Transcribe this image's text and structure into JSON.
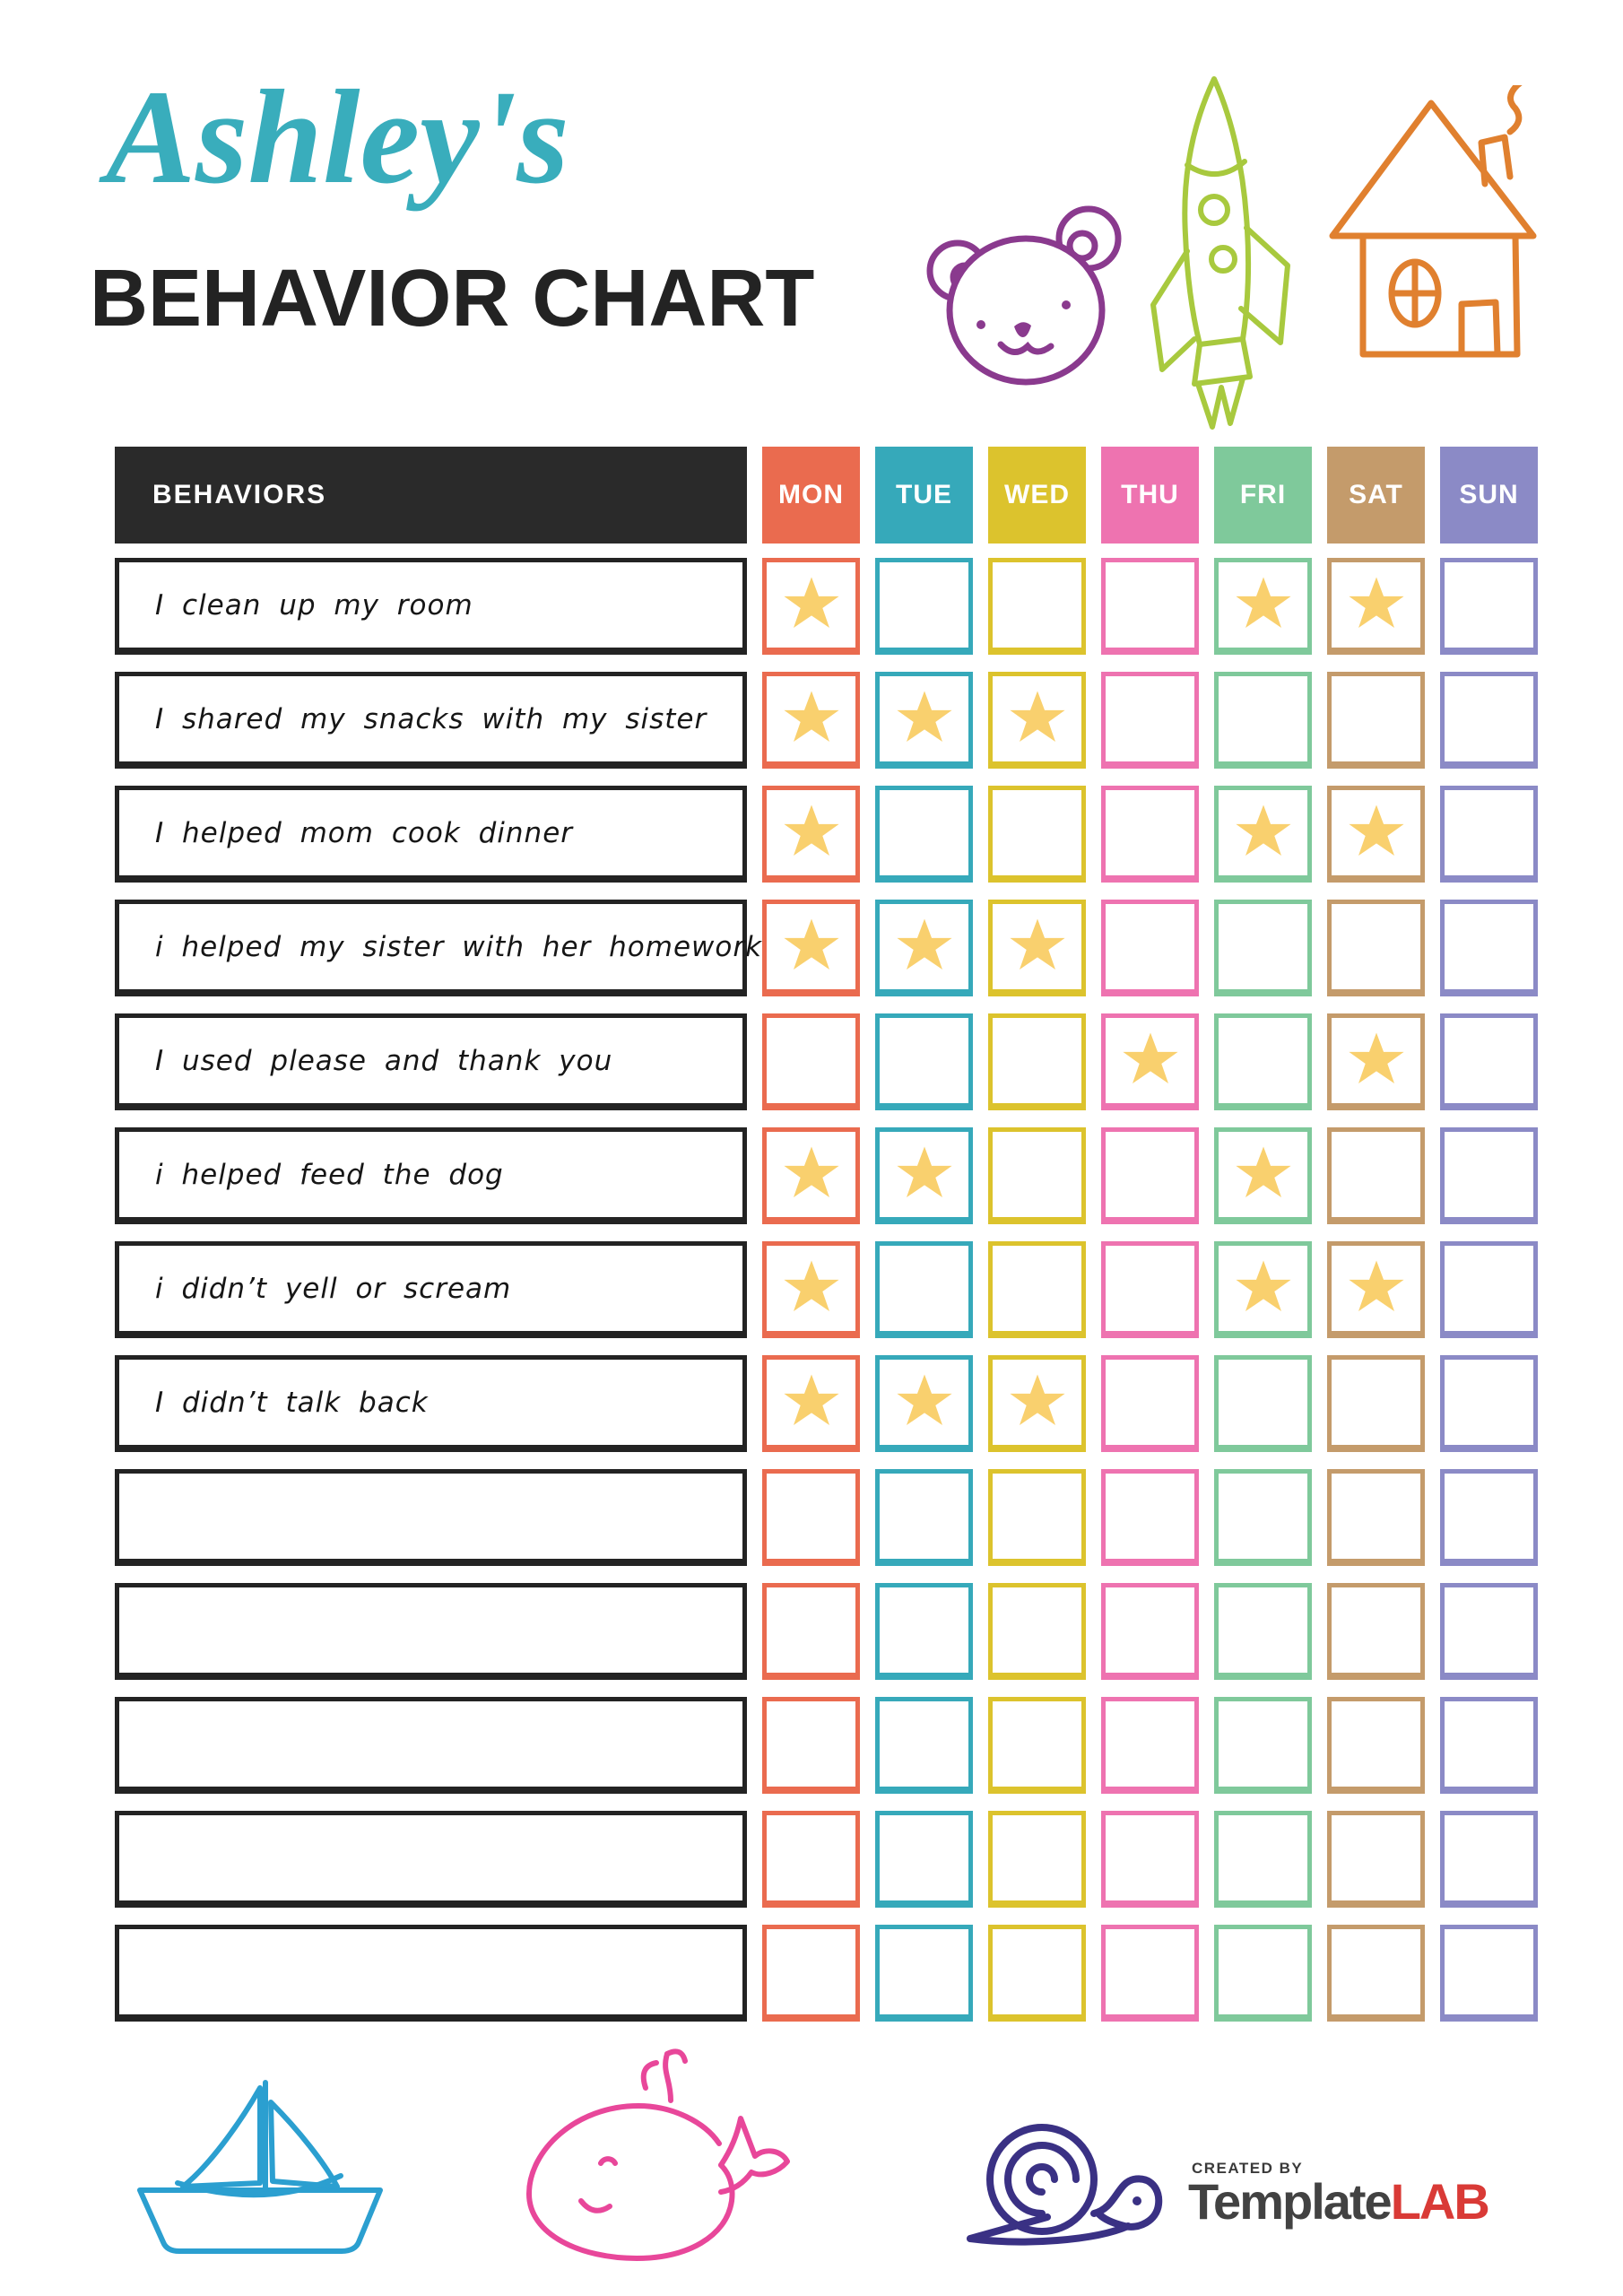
{
  "header": {
    "name_script": "Ashley's",
    "title": "BEHAVIOR CHART"
  },
  "table": {
    "behaviors_header": "BEHAVIORS",
    "header_bg": "#2A2A2A",
    "star_color": "#F9D06E",
    "days": [
      {
        "label": "MON",
        "color": "#EA6B4F"
      },
      {
        "label": "TUE",
        "color": "#36A9BA"
      },
      {
        "label": "WED",
        "color": "#DCC32D"
      },
      {
        "label": "THU",
        "color": "#EE73B0"
      },
      {
        "label": "FRI",
        "color": "#7FC99B"
      },
      {
        "label": "SAT",
        "color": "#C49B6B"
      },
      {
        "label": "SUN",
        "color": "#8B8AC6"
      }
    ],
    "rows": [
      {
        "label": "I clean up my room",
        "stars": [
          "MON",
          "FRI",
          "SAT"
        ]
      },
      {
        "label": "I shared my snacks with my sister",
        "stars": [
          "MON",
          "TUE",
          "WED"
        ]
      },
      {
        "label": "I helped mom cook dinner",
        "stars": [
          "MON",
          "FRI",
          "SAT"
        ]
      },
      {
        "label": "i helped my sister with her homework",
        "stars": [
          "MON",
          "TUE",
          "WED"
        ]
      },
      {
        "label": "I used please and thank you",
        "stars": [
          "THU",
          "SAT"
        ]
      },
      {
        "label": "i helped feed the dog",
        "stars": [
          "MON",
          "TUE",
          "FRI"
        ]
      },
      {
        "label": "i didn’t yell or scream",
        "stars": [
          "MON",
          "FRI",
          "SAT"
        ]
      },
      {
        "label": "I didn’t talk back",
        "stars": [
          "MON",
          "TUE",
          "WED"
        ]
      },
      {
        "label": "",
        "stars": []
      },
      {
        "label": "",
        "stars": []
      },
      {
        "label": "",
        "stars": []
      },
      {
        "label": "",
        "stars": []
      },
      {
        "label": "",
        "stars": []
      }
    ]
  },
  "decorations": {
    "title_script_color": "#39ADBC",
    "bear_color": "#8A3A8E",
    "rocket_color": "#A8C93E",
    "house_color": "#E0802F",
    "boat_color": "#2B9FD0",
    "whale_color": "#E8479A",
    "snail_color": "#3A3184"
  },
  "footer": {
    "created_by": "CREATED BY",
    "brand_primary": "Template",
    "brand_accent": "LAB"
  }
}
